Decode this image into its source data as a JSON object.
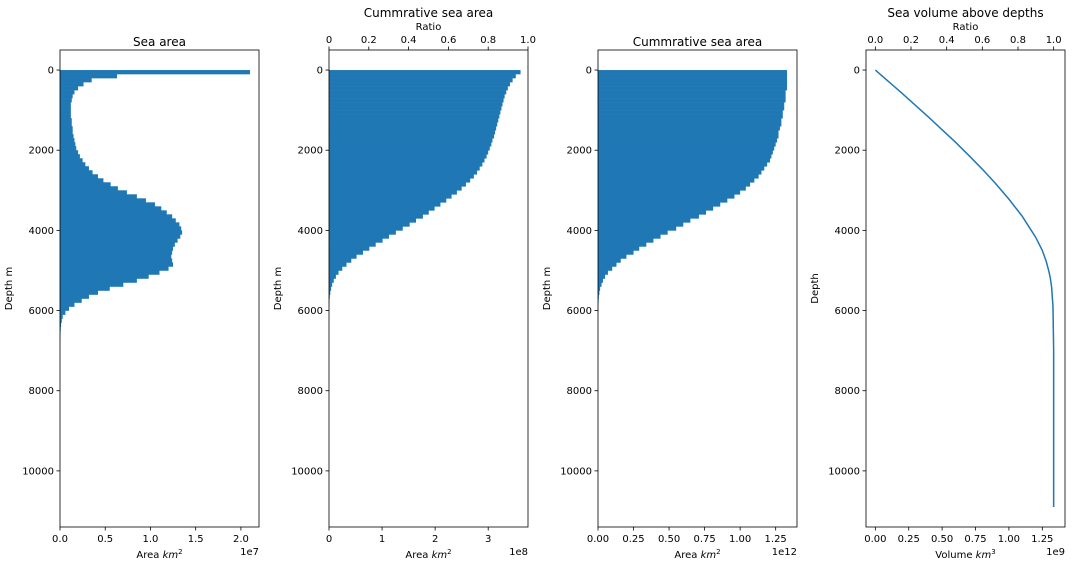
{
  "colors": {
    "series": "#1f77b4",
    "axis": "#000000",
    "background": "#ffffff"
  },
  "chart_data": [
    {
      "type": "bar",
      "orientation": "horizontal",
      "title": "Sea area",
      "xlabel": "Area $km^2$",
      "ylabel": "Depth m",
      "x_offset": "1e7",
      "xlim": [
        0,
        2.2
      ],
      "ylim": [
        11400,
        -500
      ],
      "xticks": [
        0,
        0.5,
        1.0,
        1.5,
        2.0
      ],
      "xtick_labels": [
        "0.0",
        "0.5",
        "1.0",
        "1.5",
        "2.0"
      ],
      "yticks": [
        0,
        2000,
        4000,
        6000,
        8000,
        10000
      ],
      "ytick_labels": [
        "0",
        "2000",
        "4000",
        "6000",
        "8000",
        "10000"
      ],
      "bin_depths": [
        0,
        100,
        200,
        300,
        400,
        500,
        600,
        700,
        800,
        900,
        1000,
        1100,
        1200,
        1300,
        1400,
        1500,
        1600,
        1700,
        1800,
        1900,
        2000,
        2100,
        2200,
        2300,
        2400,
        2500,
        2600,
        2700,
        2800,
        2900,
        3000,
        3100,
        3200,
        3300,
        3400,
        3500,
        3600,
        3700,
        3800,
        3900,
        4000,
        4100,
        4200,
        4300,
        4400,
        4500,
        4600,
        4700,
        4800,
        4900,
        5000,
        5100,
        5200,
        5300,
        5400,
        5500,
        5600,
        5700,
        5800,
        5900,
        6000,
        6100,
        6200,
        6300,
        6400,
        6500,
        6600,
        6700
      ],
      "values": [
        2.1,
        0.63,
        0.35,
        0.26,
        0.2,
        0.16,
        0.14,
        0.13,
        0.12,
        0.12,
        0.12,
        0.12,
        0.13,
        0.13,
        0.14,
        0.14,
        0.15,
        0.16,
        0.17,
        0.18,
        0.2,
        0.22,
        0.25,
        0.28,
        0.32,
        0.36,
        0.42,
        0.48,
        0.56,
        0.64,
        0.74,
        0.85,
        0.95,
        1.05,
        1.12,
        1.18,
        1.24,
        1.28,
        1.32,
        1.34,
        1.35,
        1.33,
        1.3,
        1.27,
        1.25,
        1.24,
        1.23,
        1.24,
        1.25,
        1.2,
        1.1,
        0.98,
        0.85,
        0.7,
        0.55,
        0.42,
        0.32,
        0.24,
        0.16,
        0.1,
        0.06,
        0.03,
        0.02,
        0.012,
        0.008,
        0.005,
        0.003,
        0.002
      ]
    },
    {
      "type": "bar",
      "orientation": "horizontal",
      "title": "Cummrative sea area",
      "xlabel": "Area $km^2$",
      "ylabel": "Depth m",
      "x_offset": "1e8",
      "xlim": [
        0,
        3.75
      ],
      "ylim": [
        11400,
        -500
      ],
      "xticks": [
        0,
        1,
        2,
        3
      ],
      "xtick_labels": [
        "0",
        "1",
        "2",
        "3"
      ],
      "yticks": [
        0,
        2000,
        4000,
        6000,
        8000,
        10000
      ],
      "ytick_labels": [
        "0",
        "2000",
        "4000",
        "6000",
        "8000",
        "10000"
      ],
      "secondary_xlabel": "Ratio",
      "secondary_xlim": [
        0,
        1.0
      ],
      "secondary_xticks": [
        0,
        0.2,
        0.4,
        0.6,
        0.8,
        1.0
      ],
      "secondary_xtick_labels": [
        "0",
        "0.2",
        "0.4",
        "0.6",
        "0.8",
        "1.0"
      ],
      "bin_depths": [
        0,
        100,
        200,
        300,
        400,
        500,
        600,
        700,
        800,
        900,
        1000,
        1100,
        1200,
        1300,
        1400,
        1500,
        1600,
        1700,
        1800,
        1900,
        2000,
        2100,
        2200,
        2300,
        2400,
        2500,
        2600,
        2700,
        2800,
        2900,
        3000,
        3100,
        3200,
        3300,
        3400,
        3500,
        3600,
        3700,
        3800,
        3900,
        4000,
        4100,
        4200,
        4300,
        4400,
        4500,
        4600,
        4700,
        4800,
        4900,
        5000,
        5100,
        5200,
        5300,
        5400,
        5500,
        5600,
        5700,
        5800,
        5900,
        6000,
        6100,
        6200,
        6300,
        6400,
        6500,
        6600,
        6700
      ],
      "values": [
        3.61,
        3.52,
        3.46,
        3.41,
        3.37,
        3.34,
        3.31,
        3.29,
        3.27,
        3.25,
        3.23,
        3.21,
        3.19,
        3.17,
        3.15,
        3.13,
        3.11,
        3.08,
        3.06,
        3.03,
        3.0,
        2.97,
        2.93,
        2.89,
        2.84,
        2.79,
        2.73,
        2.66,
        2.58,
        2.5,
        2.41,
        2.31,
        2.21,
        2.1,
        1.99,
        1.88,
        1.77,
        1.64,
        1.52,
        1.39,
        1.26,
        1.13,
        1.01,
        0.88,
        0.76,
        0.64,
        0.52,
        0.42,
        0.33,
        0.25,
        0.18,
        0.13,
        0.09,
        0.06,
        0.04,
        0.025,
        0.015,
        0.008,
        0.004,
        0.002,
        0.001,
        0.0005,
        0.0002,
        0.0001,
        5e-05,
        2e-05,
        1e-05,
        5e-06
      ]
    },
    {
      "type": "bar",
      "orientation": "horizontal",
      "title": "Cummrative sea area",
      "xlabel": "Area $km^2$",
      "ylabel": "Depth m",
      "x_offset": "1e12",
      "xlim": [
        0,
        1.4
      ],
      "ylim": [
        11400,
        -500
      ],
      "xticks": [
        0,
        0.25,
        0.5,
        0.75,
        1.0,
        1.25
      ],
      "xtick_labels": [
        "0.00",
        "0.25",
        "0.50",
        "0.75",
        "1.00",
        "1.25"
      ],
      "yticks": [
        0,
        2000,
        4000,
        6000,
        8000,
        10000
      ],
      "ytick_labels": [
        "0",
        "2000",
        "4000",
        "6000",
        "8000",
        "10000"
      ],
      "bin_depths": [
        0,
        100,
        200,
        300,
        400,
        500,
        600,
        700,
        800,
        900,
        1000,
        1100,
        1200,
        1300,
        1400,
        1500,
        1600,
        1700,
        1800,
        1900,
        2000,
        2100,
        2200,
        2300,
        2400,
        2500,
        2600,
        2700,
        2800,
        2900,
        3000,
        3100,
        3200,
        3300,
        3400,
        3500,
        3600,
        3700,
        3800,
        3900,
        4000,
        4100,
        4200,
        4300,
        4400,
        4500,
        4600,
        4700,
        4800,
        4900,
        5000,
        5100,
        5200,
        5300,
        5400,
        5500,
        5600,
        5700,
        5800,
        5900,
        6000,
        6100,
        6200,
        6300,
        6400,
        6500,
        6600,
        6700
      ],
      "values": [
        1.33,
        1.33,
        1.33,
        1.33,
        1.33,
        1.32,
        1.32,
        1.32,
        1.31,
        1.31,
        1.3,
        1.3,
        1.29,
        1.29,
        1.28,
        1.27,
        1.27,
        1.26,
        1.25,
        1.24,
        1.23,
        1.22,
        1.21,
        1.19,
        1.17,
        1.15,
        1.13,
        1.1,
        1.07,
        1.04,
        1.0,
        0.96,
        0.91,
        0.86,
        0.81,
        0.76,
        0.71,
        0.65,
        0.6,
        0.55,
        0.49,
        0.44,
        0.39,
        0.34,
        0.29,
        0.25,
        0.2,
        0.16,
        0.13,
        0.1,
        0.07,
        0.05,
        0.035,
        0.025,
        0.015,
        0.01,
        0.006,
        0.004,
        0.002,
        0.001,
        0.0005,
        0.0002,
        0.0001,
        5e-05,
        2e-05,
        1e-05,
        5e-06,
        2e-06
      ]
    },
    {
      "type": "line",
      "title": "Sea volume above depths",
      "xlabel": "Volume $km^3$",
      "ylabel": "Depth",
      "x_offset": "1e9",
      "xlim": [
        -0.07,
        1.42
      ],
      "ylim": [
        11400,
        -500
      ],
      "xticks": [
        0,
        0.25,
        0.5,
        0.75,
        1.0,
        1.25
      ],
      "xtick_labels": [
        "0.00",
        "0.25",
        "0.50",
        "0.75",
        "1.00",
        "1.25"
      ],
      "yticks": [
        0,
        2000,
        4000,
        6000,
        8000,
        10000
      ],
      "ytick_labels": [
        "0",
        "2000",
        "4000",
        "6000",
        "8000",
        "10000"
      ],
      "secondary_xlabel": "Ratio",
      "secondary_xticks": [
        0,
        0.2,
        0.4,
        0.6,
        0.8,
        1.0
      ],
      "secondary_xtick_labels": [
        "0.0",
        "0.2",
        "0.4",
        "0.6",
        "0.8",
        "1.0"
      ],
      "x": [
        0,
        0.1,
        0.2,
        0.3,
        0.4,
        0.5,
        0.6,
        0.7,
        0.8,
        0.9,
        1.0,
        1.1,
        1.2,
        1.25,
        1.28,
        1.3,
        1.31,
        1.32,
        1.33,
        1.335,
        1.335
      ],
      "y": [
        0,
        290,
        580,
        880,
        1180,
        1490,
        1800,
        2130,
        2470,
        2830,
        3220,
        3650,
        4170,
        4500,
        4780,
        5030,
        5190,
        5420,
        5900,
        7000,
        10900
      ]
    }
  ]
}
